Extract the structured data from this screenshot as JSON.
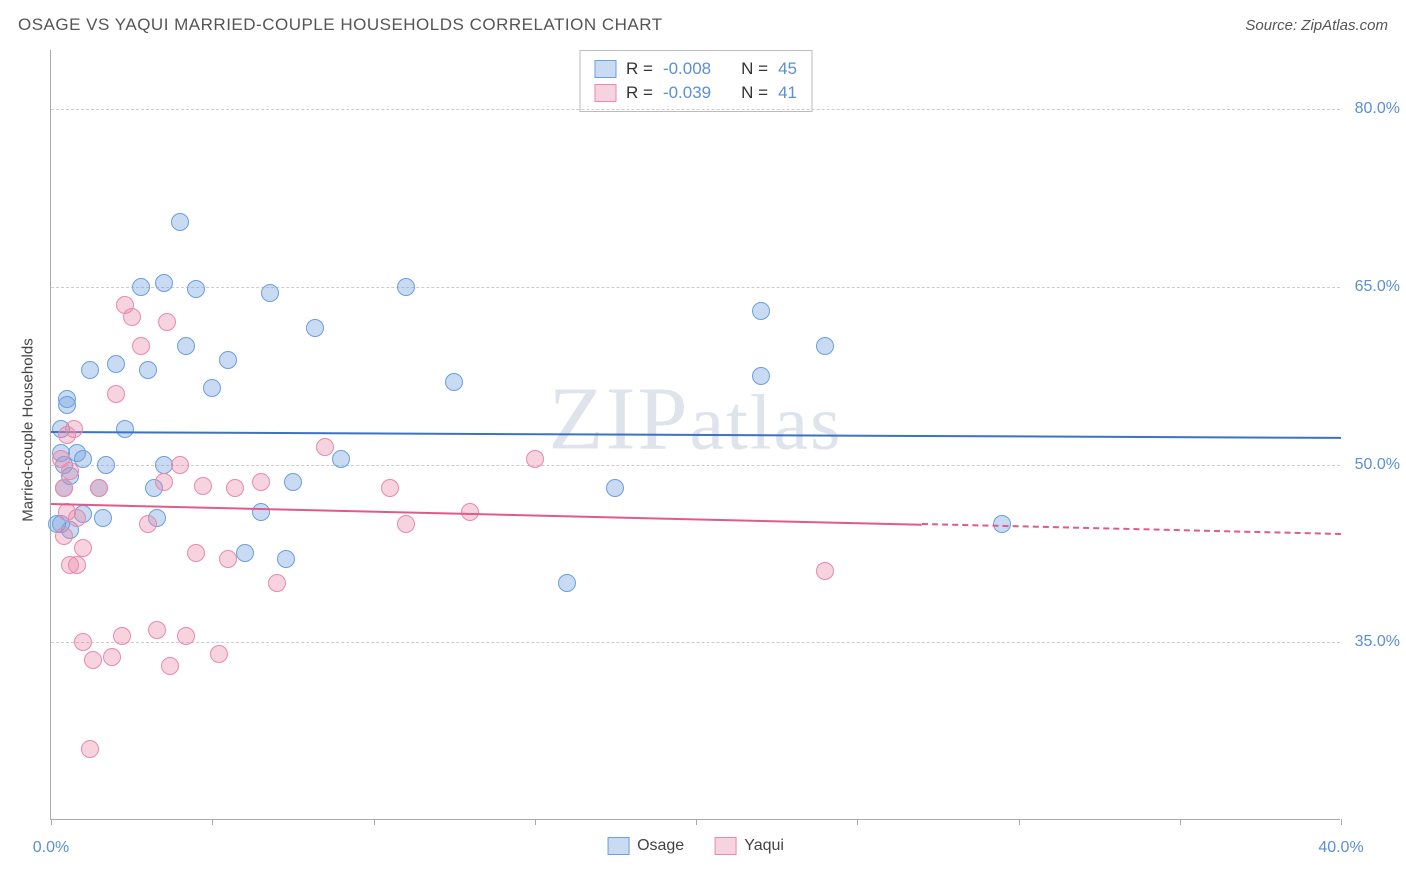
{
  "header": {
    "title": "OSAGE VS YAQUI MARRIED-COUPLE HOUSEHOLDS CORRELATION CHART",
    "source_prefix": "Source: ",
    "source_name": "ZipAtlas.com"
  },
  "watermark": "ZIPatlas",
  "chart": {
    "type": "scatter",
    "background_color": "#ffffff",
    "grid_color": "#cccccc",
    "axis_color": "#aaaaaa",
    "text_color": "#555555",
    "tick_label_color": "#5b8fd6",
    "ylabel": "Married-couple Households",
    "xlim": [
      0,
      40
    ],
    "ylim": [
      20,
      85
    ],
    "xtick_positions": [
      0,
      5,
      10,
      15,
      20,
      25,
      30,
      35,
      40
    ],
    "xtick_labels": {
      "0": "0.0%",
      "40": "40.0%"
    },
    "ytick_positions": [
      35,
      50,
      65,
      80
    ],
    "ytick_labels": {
      "35": "35.0%",
      "50": "50.0%",
      "65": "65.0%",
      "80": "80.0%"
    },
    "marker_radius": 9,
    "series": [
      {
        "name": "Osage",
        "label": "Osage",
        "fill_color": "rgba(120,165,225,0.40)",
        "stroke_color": "#6a9fe0",
        "trend_color": "#3b72c4",
        "R": "-0.008",
        "N": "45",
        "trend": {
          "x1": 0,
          "y1": 52.8,
          "x2": 40,
          "y2": 52.3,
          "dash_from_x": 40
        },
        "points": [
          [
            0.3,
            53.0
          ],
          [
            0.4,
            50.0
          ],
          [
            0.4,
            48.0
          ],
          [
            0.5,
            55.5
          ],
          [
            0.5,
            55.0
          ],
          [
            0.6,
            44.5
          ],
          [
            0.6,
            49.0
          ],
          [
            0.8,
            51.0
          ],
          [
            0.3,
            45.0
          ],
          [
            1.0,
            50.5
          ],
          [
            1.0,
            45.8
          ],
          [
            1.2,
            58.0
          ],
          [
            1.5,
            48.0
          ],
          [
            1.6,
            45.5
          ],
          [
            1.7,
            50.0
          ],
          [
            2.0,
            58.5
          ],
          [
            2.3,
            53.0
          ],
          [
            2.8,
            65.0
          ],
          [
            3.0,
            58.0
          ],
          [
            3.2,
            48.0
          ],
          [
            3.3,
            45.5
          ],
          [
            3.5,
            65.3
          ],
          [
            3.5,
            50.0
          ],
          [
            4.0,
            70.5
          ],
          [
            4.2,
            60.0
          ],
          [
            4.5,
            64.8
          ],
          [
            5.0,
            56.5
          ],
          [
            5.5,
            58.8
          ],
          [
            6.0,
            42.5
          ],
          [
            6.5,
            46.0
          ],
          [
            6.8,
            64.5
          ],
          [
            7.3,
            42.0
          ],
          [
            7.5,
            48.5
          ],
          [
            8.2,
            61.5
          ],
          [
            9.0,
            50.5
          ],
          [
            11.0,
            65.0
          ],
          [
            12.5,
            57.0
          ],
          [
            16.0,
            40.0
          ],
          [
            17.5,
            48.0
          ],
          [
            22.0,
            63.0
          ],
          [
            22.0,
            57.5
          ],
          [
            24.0,
            60.0
          ],
          [
            29.5,
            45.0
          ],
          [
            0.2,
            45.0
          ],
          [
            0.3,
            51.0
          ]
        ]
      },
      {
        "name": "Yaqui",
        "label": "Yaqui",
        "fill_color": "rgba(235,140,170,0.38)",
        "stroke_color": "#e88aa8",
        "trend_color": "#e05a8a",
        "R": "-0.039",
        "N": "41",
        "trend": {
          "x1": 0,
          "y1": 46.8,
          "x2": 40,
          "y2": 44.2,
          "dash_from_x": 27
        },
        "points": [
          [
            0.3,
            50.5
          ],
          [
            0.4,
            48.0
          ],
          [
            0.5,
            52.5
          ],
          [
            0.5,
            46.0
          ],
          [
            0.6,
            41.5
          ],
          [
            0.7,
            53.0
          ],
          [
            0.8,
            45.5
          ],
          [
            0.8,
            41.5
          ],
          [
            0.6,
            49.5
          ],
          [
            1.0,
            43.0
          ],
          [
            1.0,
            35.0
          ],
          [
            1.2,
            26.0
          ],
          [
            1.3,
            33.5
          ],
          [
            1.5,
            48.0
          ],
          [
            1.9,
            33.8
          ],
          [
            2.2,
            35.5
          ],
          [
            2.3,
            63.5
          ],
          [
            2.5,
            62.5
          ],
          [
            2.8,
            60.0
          ],
          [
            3.0,
            45.0
          ],
          [
            3.3,
            36.0
          ],
          [
            3.5,
            48.5
          ],
          [
            3.6,
            62.0
          ],
          [
            3.7,
            33.0
          ],
          [
            4.0,
            50.0
          ],
          [
            4.2,
            35.5
          ],
          [
            4.5,
            42.5
          ],
          [
            4.7,
            48.2
          ],
          [
            5.2,
            34.0
          ],
          [
            5.5,
            42.0
          ],
          [
            5.7,
            48.0
          ],
          [
            6.5,
            48.5
          ],
          [
            7.0,
            40.0
          ],
          [
            8.5,
            51.5
          ],
          [
            10.5,
            48.0
          ],
          [
            11.0,
            45.0
          ],
          [
            13.0,
            46.0
          ],
          [
            15.0,
            50.5
          ],
          [
            24.0,
            41.0
          ],
          [
            2.0,
            56.0
          ],
          [
            0.4,
            44.0
          ]
        ]
      }
    ],
    "legend_top": {
      "R_label": "R =",
      "N_label": "N ="
    }
  }
}
